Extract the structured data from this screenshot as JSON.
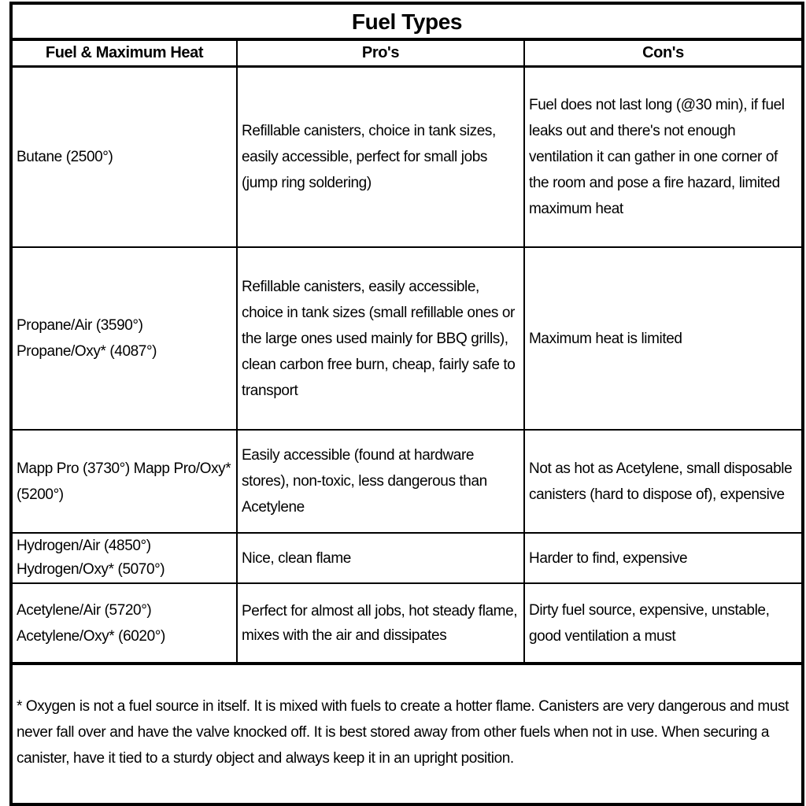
{
  "title": "Fuel Types",
  "headers": [
    "Fuel  & Maximum Heat",
    "Pro's",
    "Con's"
  ],
  "rows": [
    {
      "fuel": "Butane (2500°)",
      "pros": "Refillable canisters, choice in tank sizes, easily accessible, perfect for small jobs (jump ring soldering)",
      "cons": "Fuel does not last long (@30 min), if fuel leaks out and there's not enough ventilation it can gather in one corner of the room and pose a fire hazard, limited maximum heat"
    },
    {
      "fuel": "Propane/Air (3590°) Propane/Oxy* (4087°)",
      "pros": "Refillable canisters, easily accessible, choice in tank sizes (small refillable ones or the large ones used mainly for BBQ grills), clean carbon free burn, cheap, fairly safe to transport",
      "cons": "Maximum heat is limited"
    },
    {
      "fuel": "Mapp Pro (3730°) Mapp Pro/Oxy* (5200°)",
      "pros": "Easily accessible (found at hardware stores), non-toxic, less dangerous than Acetylene",
      "cons": "Not as hot as Acetylene, small disposable canisters (hard to dispose of), expensive"
    },
    {
      "fuel": "Hydrogen/Air (4850°) Hydrogen/Oxy* (5070°)",
      "pros": "Nice, clean flame",
      "cons": "Harder to find, expensive"
    },
    {
      "fuel": "Acetylene/Air (5720°) Acetylene/Oxy* (6020°)",
      "pros": "Perfect for almost all jobs,  hot steady flame, mixes with the air and dissipates",
      "cons": "Dirty fuel source, expensive, unstable, good ventilation a must"
    }
  ],
  "footnote": "* Oxygen is not a fuel source in itself. It is mixed with fuels to create a hotter flame. Canisters are very dangerous and must never fall over and have the valve knocked off. It is best stored away from other fuels when not in use. When securing a canister, have it tied to a sturdy object and always keep it in an upright position."
}
